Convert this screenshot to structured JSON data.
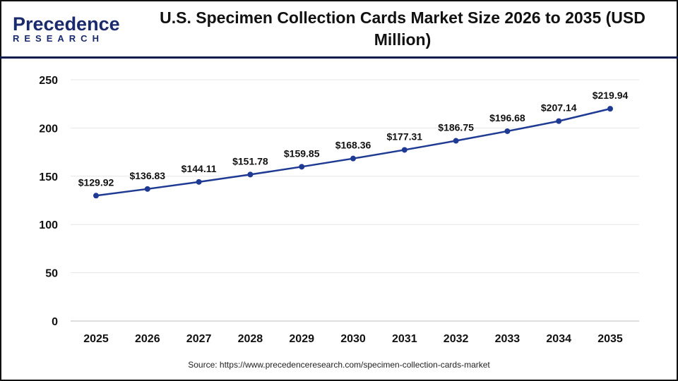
{
  "logo": {
    "line1": "Precedence",
    "line2": "RESEARCH"
  },
  "title": "U.S. Specimen Collection Cards Market Size 2026 to 2035 (USD Million)",
  "source": "Source: https://www.precedenceresearch.com/specimen-collection-cards-market",
  "chart_data": {
    "type": "line",
    "title": "U.S. Specimen Collection Cards Market Size 2026 to 2035 (USD Million)",
    "categories": [
      "2025",
      "2026",
      "2027",
      "2028",
      "2029",
      "2030",
      "2031",
      "2032",
      "2033",
      "2034",
      "2035"
    ],
    "values": [
      129.92,
      136.83,
      144.11,
      151.78,
      159.85,
      168.36,
      177.31,
      186.75,
      196.68,
      207.14,
      219.94
    ],
    "data_labels": [
      "$129.92",
      "$136.83",
      "$144.11",
      "$151.78",
      "$159.85",
      "$168.36",
      "$177.31",
      "$186.75",
      "$196.68",
      "$207.14",
      "$219.94"
    ],
    "ylim": [
      0,
      250
    ],
    "yticks": [
      "0",
      "50",
      "100",
      "150",
      "200",
      "250"
    ],
    "grid": true,
    "line_color": "#1f3a93"
  }
}
